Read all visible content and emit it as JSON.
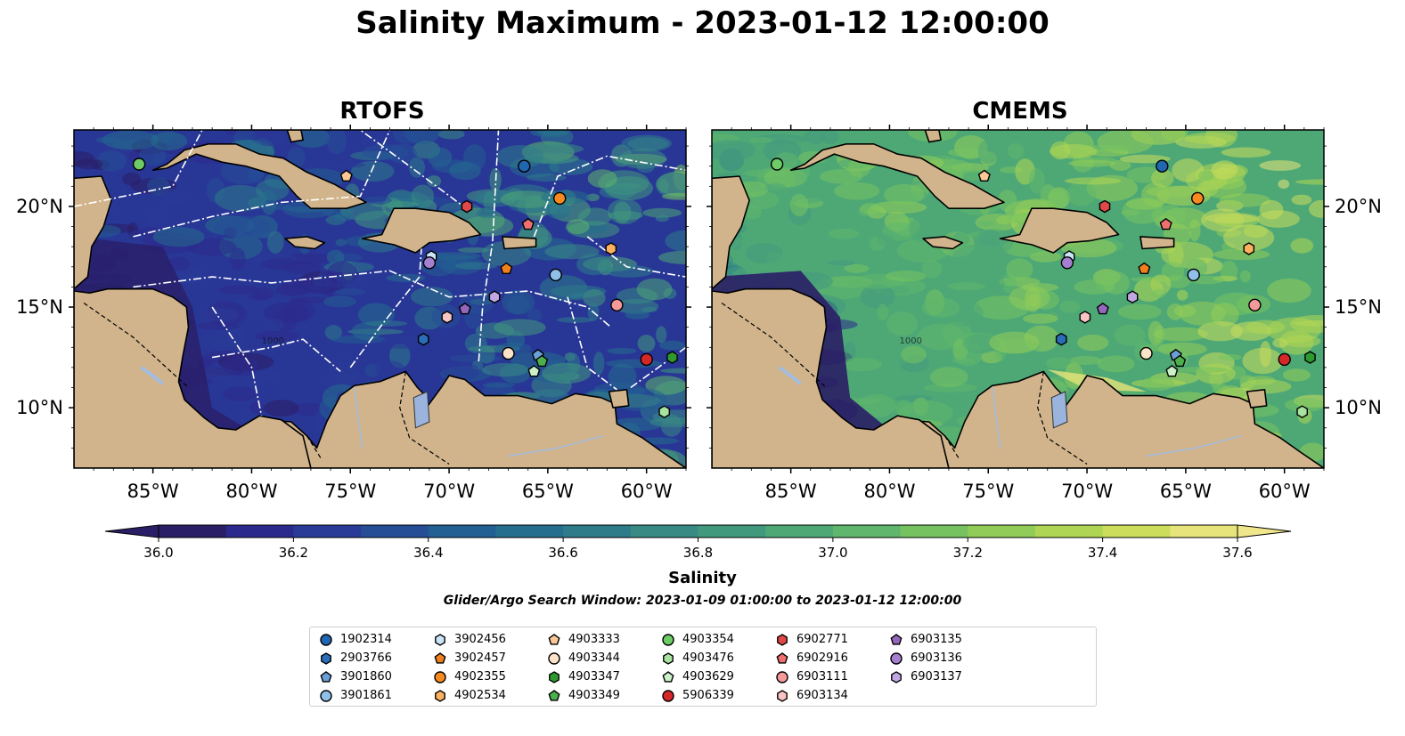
{
  "title": "Salinity Maximum - 2023-01-12 12:00:00",
  "panels": [
    {
      "title": "RTOFS",
      "theme": "rtofs"
    },
    {
      "title": "CMEMS",
      "theme": "cmems"
    }
  ],
  "lat_labels": [
    "20°N",
    "15°N",
    "10°N"
  ],
  "lon_labels": [
    "85°W",
    "80°W",
    "75°W",
    "70°W",
    "65°W",
    "60°W"
  ],
  "colorbar": {
    "label": "Salinity",
    "ticks": [
      "36.0",
      "36.2",
      "36.4",
      "36.6",
      "36.8",
      "37.0",
      "37.2",
      "37.4",
      "37.6"
    ],
    "colors": [
      "#2a1e66",
      "#2b2a8c",
      "#293b97",
      "#254e97",
      "#225f92",
      "#256e8e",
      "#2e7c8a",
      "#388b84",
      "#41997d",
      "#4ea876",
      "#5fb66c",
      "#76c261",
      "#91cc58",
      "#aed553",
      "#cbdd5b",
      "#e6e47a"
    ],
    "range": [
      36.0,
      37.6
    ]
  },
  "search_window": "Glider/Argo Search Window: 2023-01-09 01:00:00 to 2023-01-12 12:00:00",
  "floats": [
    {
      "id": "1902314",
      "marker": "circle",
      "color": "#1f67b0",
      "lon": -66.2,
      "lat": 22.0
    },
    {
      "id": "2903766",
      "marker": "hexagon",
      "color": "#2a6db8",
      "lon": -71.3,
      "lat": 13.4
    },
    {
      "id": "3901860",
      "marker": "pentagon",
      "color": "#6a9fd8",
      "lon": -65.5,
      "lat": 12.6
    },
    {
      "id": "3901861",
      "marker": "circle",
      "color": "#8fc0ea",
      "lon": -64.6,
      "lat": 16.6
    },
    {
      "id": "3902456",
      "marker": "hexagon",
      "color": "#c8e6f8",
      "lon": -70.9,
      "lat": 17.5
    },
    {
      "id": "3902457",
      "marker": "pentagon",
      "color": "#f07f1e",
      "lon": -67.1,
      "lat": 16.9
    },
    {
      "id": "4902355",
      "marker": "circle",
      "color": "#f7891f",
      "lon": -64.4,
      "lat": 20.4
    },
    {
      "id": "4902534",
      "marker": "hexagon",
      "color": "#fbb15f",
      "lon": -61.8,
      "lat": 17.9
    },
    {
      "id": "4903333",
      "marker": "pentagon",
      "color": "#fcc893",
      "lon": -75.2,
      "lat": 21.5
    },
    {
      "id": "4903344",
      "marker": "circle",
      "color": "#fde3c8",
      "lon": -67.0,
      "lat": 12.7
    },
    {
      "id": "4903347",
      "marker": "hexagon",
      "color": "#2e9a2e",
      "lon": -58.7,
      "lat": 12.5
    },
    {
      "id": "4903349",
      "marker": "pentagon",
      "color": "#4cb04c",
      "lon": -65.3,
      "lat": 12.3
    },
    {
      "id": "4903354",
      "marker": "circle",
      "color": "#6ecc66",
      "lon": -85.7,
      "lat": 22.1
    },
    {
      "id": "4903476",
      "marker": "hexagon",
      "color": "#a8e3a0",
      "lon": -59.1,
      "lat": 9.8
    },
    {
      "id": "4903629",
      "marker": "pentagon",
      "color": "#ccf0c8",
      "lon": -65.7,
      "lat": 11.8
    },
    {
      "id": "5906339",
      "marker": "circle",
      "color": "#d62728",
      "lon": -60.0,
      "lat": 12.4
    },
    {
      "id": "6902771",
      "marker": "hexagon",
      "color": "#e04848",
      "lon": -69.1,
      "lat": 20.0
    },
    {
      "id": "6902916",
      "marker": "pentagon",
      "color": "#f07070",
      "lon": -66.0,
      "lat": 19.1
    },
    {
      "id": "6903111",
      "marker": "circle",
      "color": "#f59a9a",
      "lon": -61.5,
      "lat": 15.1
    },
    {
      "id": "6903134",
      "marker": "hexagon",
      "color": "#f9c4c4",
      "lon": -70.1,
      "lat": 14.5
    },
    {
      "id": "6903135",
      "marker": "pentagon",
      "color": "#9467bd",
      "lon": -69.2,
      "lat": 14.9
    },
    {
      "id": "6903136",
      "marker": "circle",
      "color": "#a57fd0",
      "lon": -71.0,
      "lat": 17.2
    },
    {
      "id": "6903137",
      "marker": "hexagon",
      "color": "#c2a8e3",
      "lon": -67.7,
      "lat": 15.5
    }
  ]
}
